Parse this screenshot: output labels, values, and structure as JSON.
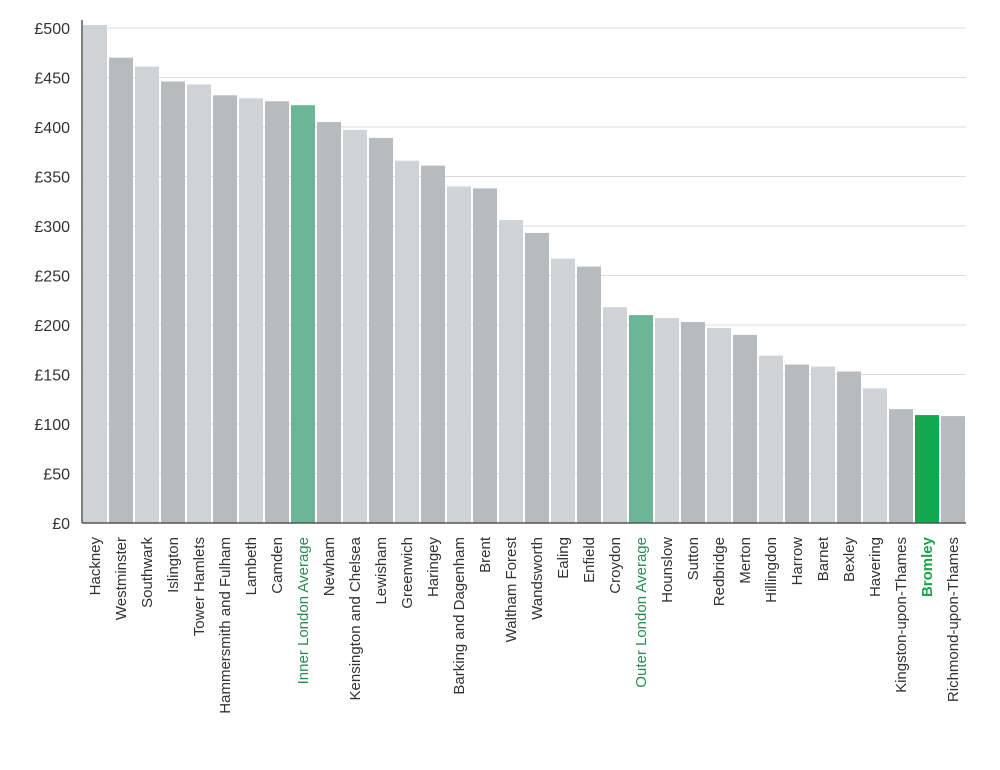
{
  "chart_data": {
    "type": "bar",
    "title": "",
    "xlabel": "",
    "ylabel": "",
    "ylim": [
      0,
      500
    ],
    "yticks": [
      0,
      50,
      100,
      150,
      200,
      250,
      300,
      350,
      400,
      450,
      500
    ],
    "ytick_labels": [
      "£0",
      "£50",
      "£100",
      "£150",
      "£200",
      "£250",
      "£300",
      "£350",
      "£400",
      "£450",
      "£500"
    ],
    "grid": true,
    "categories": [
      "Hackney",
      "Westminster",
      "Southwark",
      "Islington",
      "Tower Hamlets",
      "Hammersmith and Fulham",
      "Lambeth",
      "Camden",
      "Inner London Average",
      "Newham",
      "Kensington and Chelsea",
      "Lewisham",
      "Greenwich",
      "Haringey",
      "Barking and Dagenham",
      "Brent",
      "Waltham Forest",
      "Wandsworth",
      "Ealing",
      "Enfield",
      "Croydon",
      "Outer London Average",
      "Hounslow",
      "Sutton",
      "Redbridge",
      "Merton",
      "Hillingdon",
      "Harrow",
      "Barnet",
      "Bexley",
      "Havering",
      "Kingston-upon-Thames",
      "Bromley",
      "Richmond-upon-Thames"
    ],
    "values": [
      503,
      470,
      461,
      446,
      443,
      432,
      429,
      426,
      422,
      405,
      397,
      389,
      366,
      361,
      340,
      338,
      306,
      293,
      267,
      259,
      218,
      210,
      207,
      203,
      197,
      190,
      169,
      160,
      158,
      153,
      136,
      115,
      109,
      108
    ],
    "highlight": {
      "Inner London Average": "average",
      "Outer London Average": "average",
      "Bromley": "bromley"
    },
    "colors": {
      "bar_light": "#cfd3d6",
      "bar_dark": "#b7bbbe",
      "average": "#6cb596",
      "bromley": "#11a84e",
      "grid": "#d9dde0",
      "axis": "#555555"
    }
  }
}
